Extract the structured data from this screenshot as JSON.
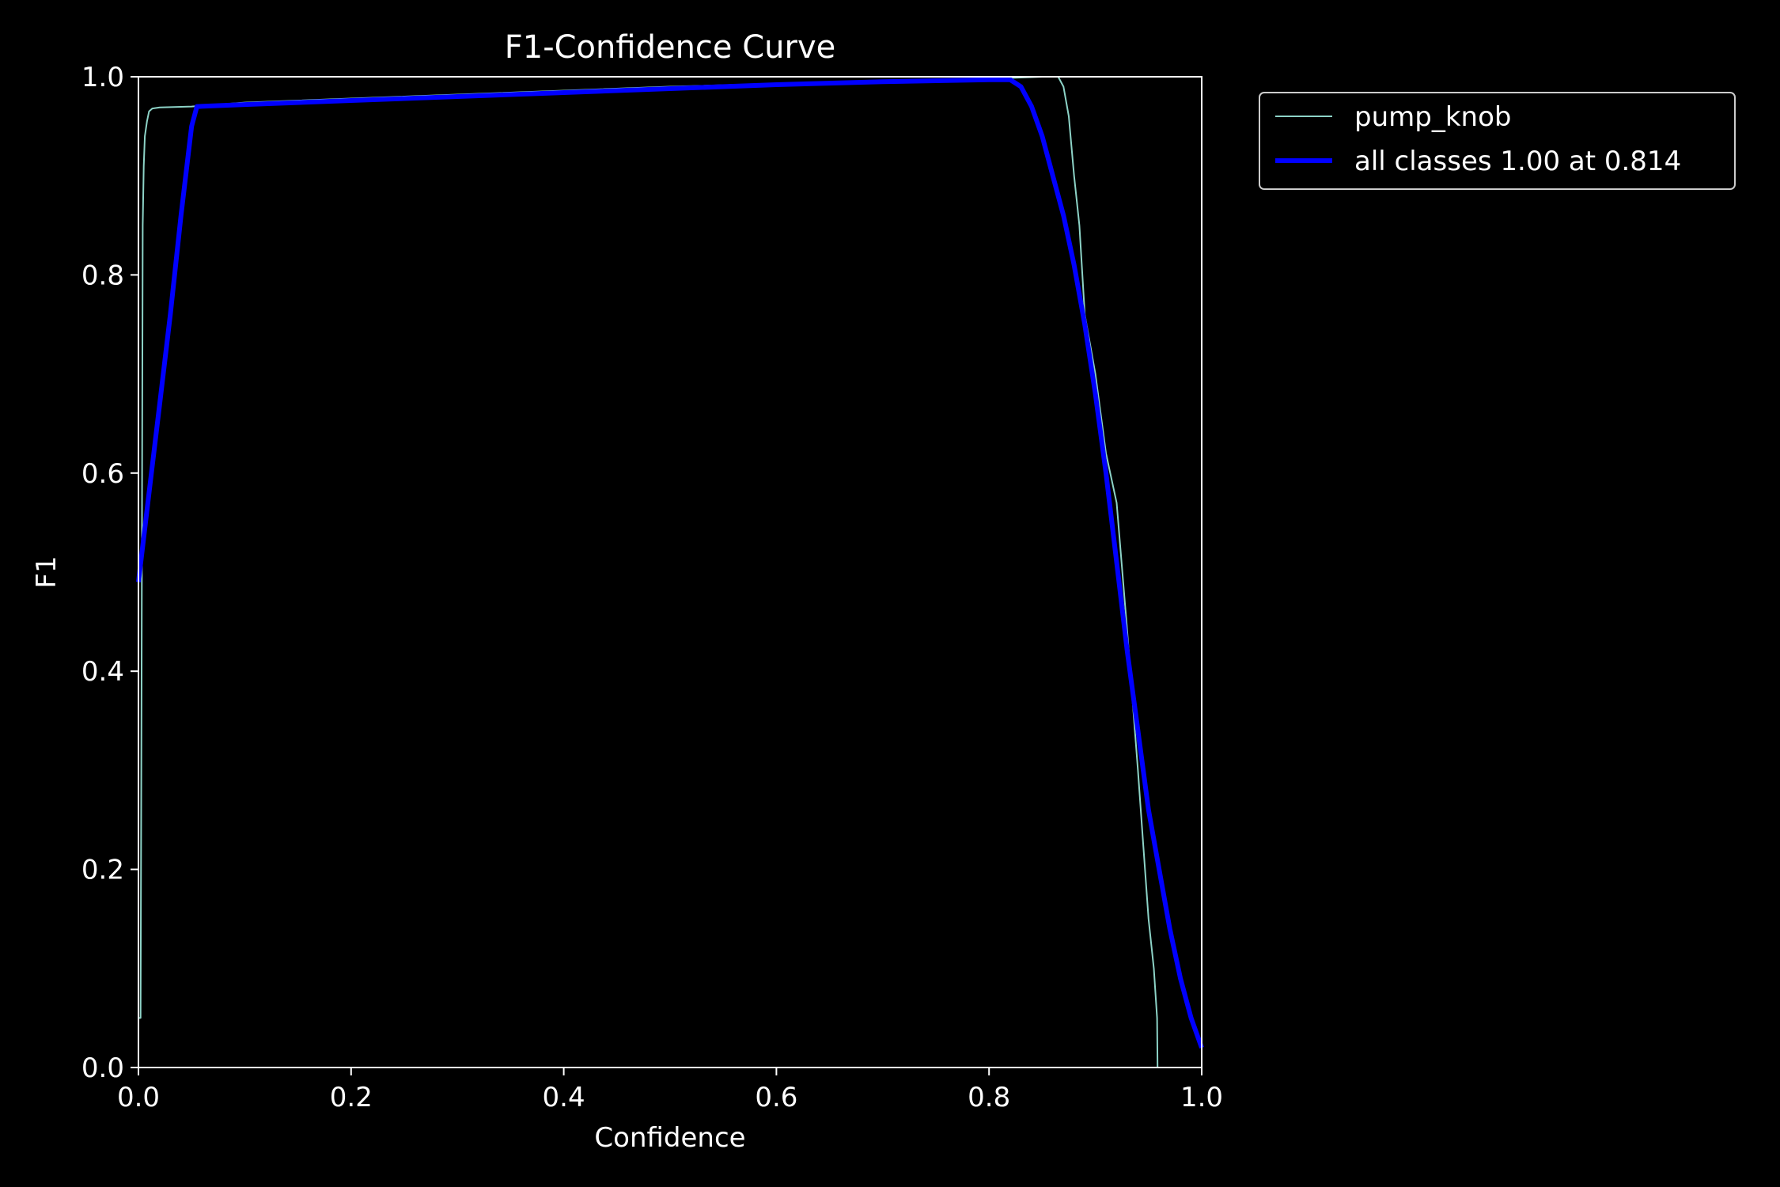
{
  "chart_data": {
    "type": "line",
    "title": "F1-Confidence Curve",
    "xlabel": "Confidence",
    "ylabel": "F1",
    "xlim": [
      0,
      1
    ],
    "ylim": [
      0,
      1
    ],
    "xticks": [
      "0.0",
      "0.2",
      "0.4",
      "0.6",
      "0.8",
      "1.0"
    ],
    "yticks": [
      "0.0",
      "0.2",
      "0.4",
      "0.6",
      "0.8",
      "1.0"
    ],
    "grid": false,
    "legend_position": "outside-top-right",
    "background": "#000000",
    "series": [
      {
        "name": "pump_knob",
        "color": "#8dd3c7",
        "width": 2,
        "x": [
          0.0,
          0.002,
          0.003,
          0.004,
          0.005,
          0.006,
          0.008,
          0.01,
          0.013,
          0.02,
          0.05,
          0.1,
          0.2,
          0.3,
          0.4,
          0.5,
          0.6,
          0.7,
          0.8,
          0.85,
          0.865,
          0.87,
          0.875,
          0.88,
          0.885,
          0.89,
          0.9,
          0.91,
          0.92,
          0.93,
          0.94,
          0.95,
          0.955,
          0.958,
          0.9585,
          0.96,
          0.97,
          0.98,
          1.0
        ],
        "y": [
          0.05,
          0.05,
          0.4,
          0.85,
          0.91,
          0.94,
          0.955,
          0.965,
          0.968,
          0.969,
          0.97,
          0.974,
          0.978,
          0.982,
          0.986,
          0.99,
          0.993,
          0.996,
          0.998,
          1.0,
          1.0,
          0.99,
          0.96,
          0.9,
          0.85,
          0.76,
          0.7,
          0.62,
          0.57,
          0.44,
          0.3,
          0.15,
          0.1,
          0.05,
          0.0,
          0.0,
          0.0,
          0.0,
          0.0
        ]
      },
      {
        "name": "all classes 1.00 at 0.814",
        "color": "#0000ff",
        "width": 6,
        "x": [
          0.0,
          0.01,
          0.02,
          0.03,
          0.04,
          0.05,
          0.055,
          0.1,
          0.2,
          0.3,
          0.4,
          0.5,
          0.6,
          0.7,
          0.8,
          0.82,
          0.83,
          0.84,
          0.85,
          0.86,
          0.87,
          0.88,
          0.89,
          0.9,
          0.91,
          0.92,
          0.93,
          0.94,
          0.95,
          0.96,
          0.97,
          0.98,
          0.99,
          1.0
        ],
        "y": [
          0.49,
          0.58,
          0.67,
          0.76,
          0.86,
          0.95,
          0.97,
          0.972,
          0.976,
          0.98,
          0.984,
          0.988,
          0.992,
          0.995,
          0.997,
          0.997,
          0.99,
          0.97,
          0.94,
          0.9,
          0.86,
          0.81,
          0.75,
          0.68,
          0.6,
          0.51,
          0.42,
          0.34,
          0.26,
          0.2,
          0.14,
          0.09,
          0.05,
          0.02
        ]
      }
    ]
  }
}
